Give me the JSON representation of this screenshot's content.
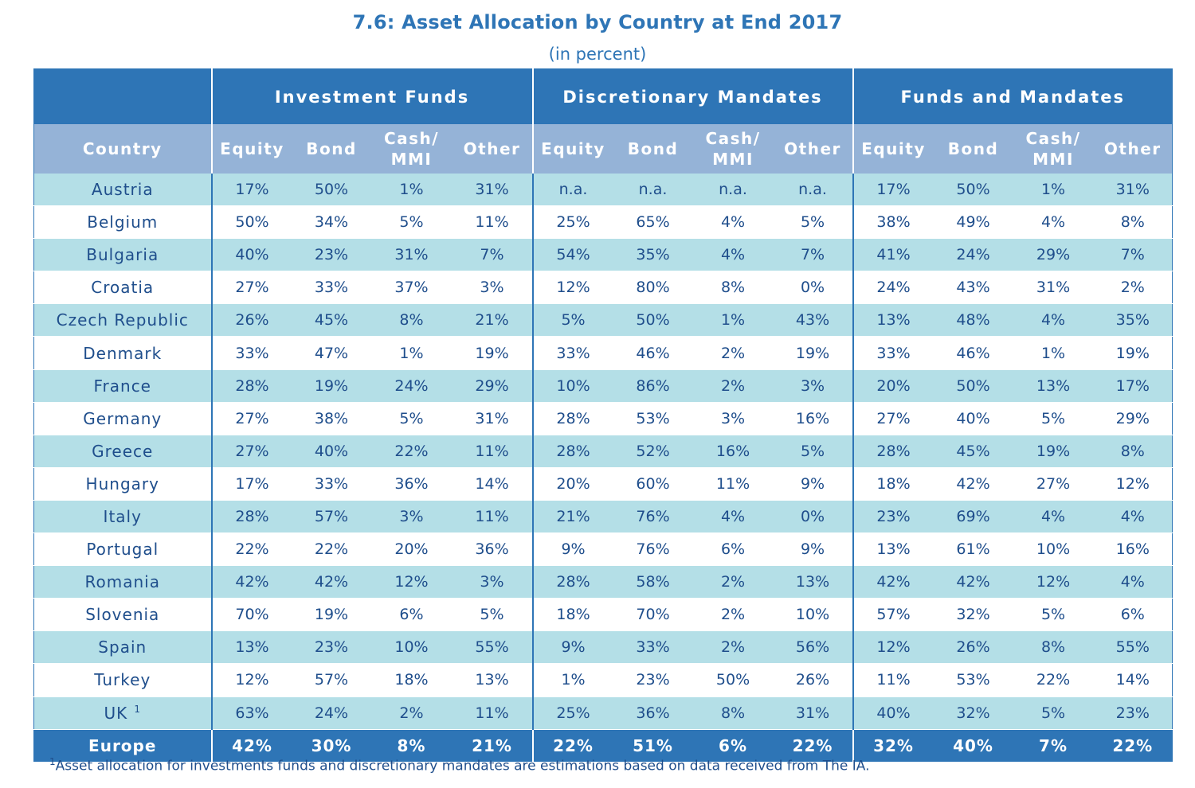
{
  "chart_data": {
    "type": "table",
    "title": "7.6: Asset Allocation by Country at End 2017",
    "subtitle": "(in percent)",
    "groups": [
      "Investment Funds",
      "Discretionary Mandates",
      "Funds and Mandates"
    ],
    "row_header": "Country",
    "columns": [
      "Equity",
      "Bond",
      "Cash/ MMI",
      "Other"
    ],
    "rows": [
      {
        "country": "Austria",
        "note": "",
        "values": [
          "17%",
          "50%",
          "1%",
          "31%",
          "n.a.",
          "n.a.",
          "n.a.",
          "n.a.",
          "17%",
          "50%",
          "1%",
          "31%"
        ]
      },
      {
        "country": "Belgium",
        "note": "",
        "values": [
          "50%",
          "34%",
          "5%",
          "11%",
          "25%",
          "65%",
          "4%",
          "5%",
          "38%",
          "49%",
          "4%",
          "8%"
        ]
      },
      {
        "country": "Bulgaria",
        "note": "",
        "values": [
          "40%",
          "23%",
          "31%",
          "7%",
          "54%",
          "35%",
          "4%",
          "7%",
          "41%",
          "24%",
          "29%",
          "7%"
        ]
      },
      {
        "country": "Croatia",
        "note": "",
        "values": [
          "27%",
          "33%",
          "37%",
          "3%",
          "12%",
          "80%",
          "8%",
          "0%",
          "24%",
          "43%",
          "31%",
          "2%"
        ]
      },
      {
        "country": "Czech Republic",
        "note": "",
        "values": [
          "26%",
          "45%",
          "8%",
          "21%",
          "5%",
          "50%",
          "1%",
          "43%",
          "13%",
          "48%",
          "4%",
          "35%"
        ]
      },
      {
        "country": "Denmark",
        "note": "",
        "values": [
          "33%",
          "47%",
          "1%",
          "19%",
          "33%",
          "46%",
          "2%",
          "19%",
          "33%",
          "46%",
          "1%",
          "19%"
        ]
      },
      {
        "country": "France",
        "note": "",
        "values": [
          "28%",
          "19%",
          "24%",
          "29%",
          "10%",
          "86%",
          "2%",
          "3%",
          "20%",
          "50%",
          "13%",
          "17%"
        ]
      },
      {
        "country": "Germany",
        "note": "",
        "values": [
          "27%",
          "38%",
          "5%",
          "31%",
          "28%",
          "53%",
          "3%",
          "16%",
          "27%",
          "40%",
          "5%",
          "29%"
        ]
      },
      {
        "country": "Greece",
        "note": "",
        "values": [
          "27%",
          "40%",
          "22%",
          "11%",
          "28%",
          "52%",
          "16%",
          "5%",
          "28%",
          "45%",
          "19%",
          "8%"
        ]
      },
      {
        "country": "Hungary",
        "note": "",
        "values": [
          "17%",
          "33%",
          "36%",
          "14%",
          "20%",
          "60%",
          "11%",
          "9%",
          "18%",
          "42%",
          "27%",
          "12%"
        ]
      },
      {
        "country": "Italy",
        "note": "",
        "values": [
          "28%",
          "57%",
          "3%",
          "11%",
          "21%",
          "76%",
          "4%",
          "0%",
          "23%",
          "69%",
          "4%",
          "4%"
        ]
      },
      {
        "country": "Portugal",
        "note": "",
        "values": [
          "22%",
          "22%",
          "20%",
          "36%",
          "9%",
          "76%",
          "6%",
          "9%",
          "13%",
          "61%",
          "10%",
          "16%"
        ]
      },
      {
        "country": "Romania",
        "note": "",
        "values": [
          "42%",
          "42%",
          "12%",
          "3%",
          "28%",
          "58%",
          "2%",
          "13%",
          "42%",
          "42%",
          "12%",
          "4%"
        ]
      },
      {
        "country": "Slovenia",
        "note": "",
        "values": [
          "70%",
          "19%",
          "6%",
          "5%",
          "18%",
          "70%",
          "2%",
          "10%",
          "57%",
          "32%",
          "5%",
          "6%"
        ]
      },
      {
        "country": "Spain",
        "note": "",
        "values": [
          "13%",
          "23%",
          "10%",
          "55%",
          "9%",
          "33%",
          "2%",
          "56%",
          "12%",
          "26%",
          "8%",
          "55%"
        ]
      },
      {
        "country": "Turkey",
        "note": "",
        "values": [
          "12%",
          "57%",
          "18%",
          "13%",
          "1%",
          "23%",
          "50%",
          "26%",
          "11%",
          "53%",
          "22%",
          "14%"
        ]
      },
      {
        "country": "UK",
        "note": "1",
        "values": [
          "63%",
          "24%",
          "2%",
          "11%",
          "25%",
          "36%",
          "8%",
          "31%",
          "40%",
          "32%",
          "5%",
          "23%"
        ]
      }
    ],
    "total": {
      "country": "Europe",
      "values": [
        "42%",
        "30%",
        "8%",
        "21%",
        "22%",
        "51%",
        "6%",
        "22%",
        "32%",
        "40%",
        "7%",
        "22%"
      ]
    },
    "footnote": {
      "mark": "1",
      "text": "Asset allocation for investments funds and discretionary mandates are estimations based on data received from The IA."
    }
  },
  "colors": {
    "header": "#2e75b6",
    "subheader": "#95b3d7",
    "band": "#b4dfe7",
    "text": "#1f4e8c"
  }
}
